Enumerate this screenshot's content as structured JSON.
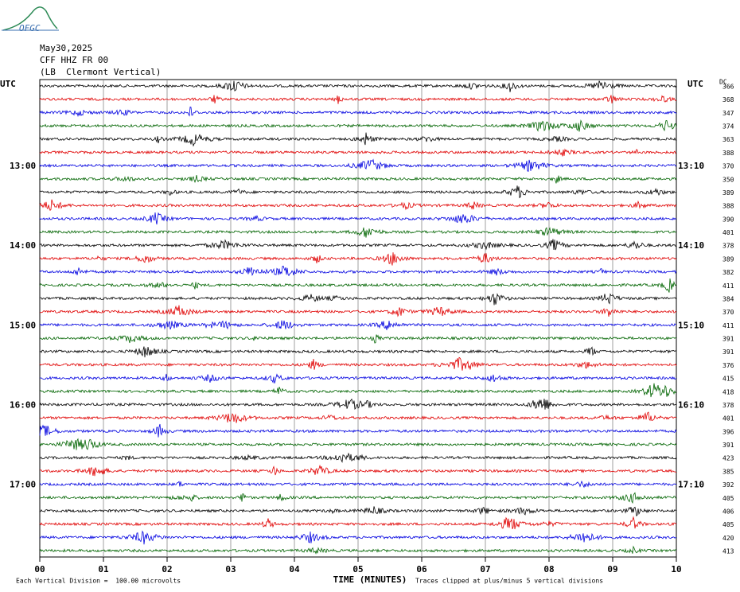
{
  "header": {
    "logo": "OFGC",
    "date": "May30,2025",
    "station": "CFF HHZ FR 00",
    "location": "(LB  Clermont Vertical)"
  },
  "left_labels": [
    "UTC",
    "13:00",
    "14:00",
    "15:00",
    "16:00",
    "17:00"
  ],
  "right_labels": [
    "UTC",
    "13:10",
    "14:10",
    "15:10",
    "16:10",
    "17:10"
  ],
  "dc_label": "DC",
  "dc_values": [
    "366",
    "368",
    "347",
    "374",
    "363",
    "388",
    "370",
    "350",
    "389",
    "388",
    "390",
    "401",
    "378",
    "389",
    "382",
    "411",
    "384",
    "370",
    "411",
    "391",
    "391",
    "376",
    "415",
    "418",
    "378",
    "401",
    "396",
    "391",
    "423",
    "385",
    "392",
    "405",
    "406",
    "405",
    "420",
    "413"
  ],
  "x_ticks": [
    "00",
    "01",
    "02",
    "03",
    "04",
    "05",
    "06",
    "07",
    "08",
    "09",
    "10"
  ],
  "x_label": "TIME (MINUTES)",
  "footer_left": "Each Vertical Division =  100.00 microvolts",
  "footer_right": "Traces clipped at plus/minus 5 vertical divisions"
}
